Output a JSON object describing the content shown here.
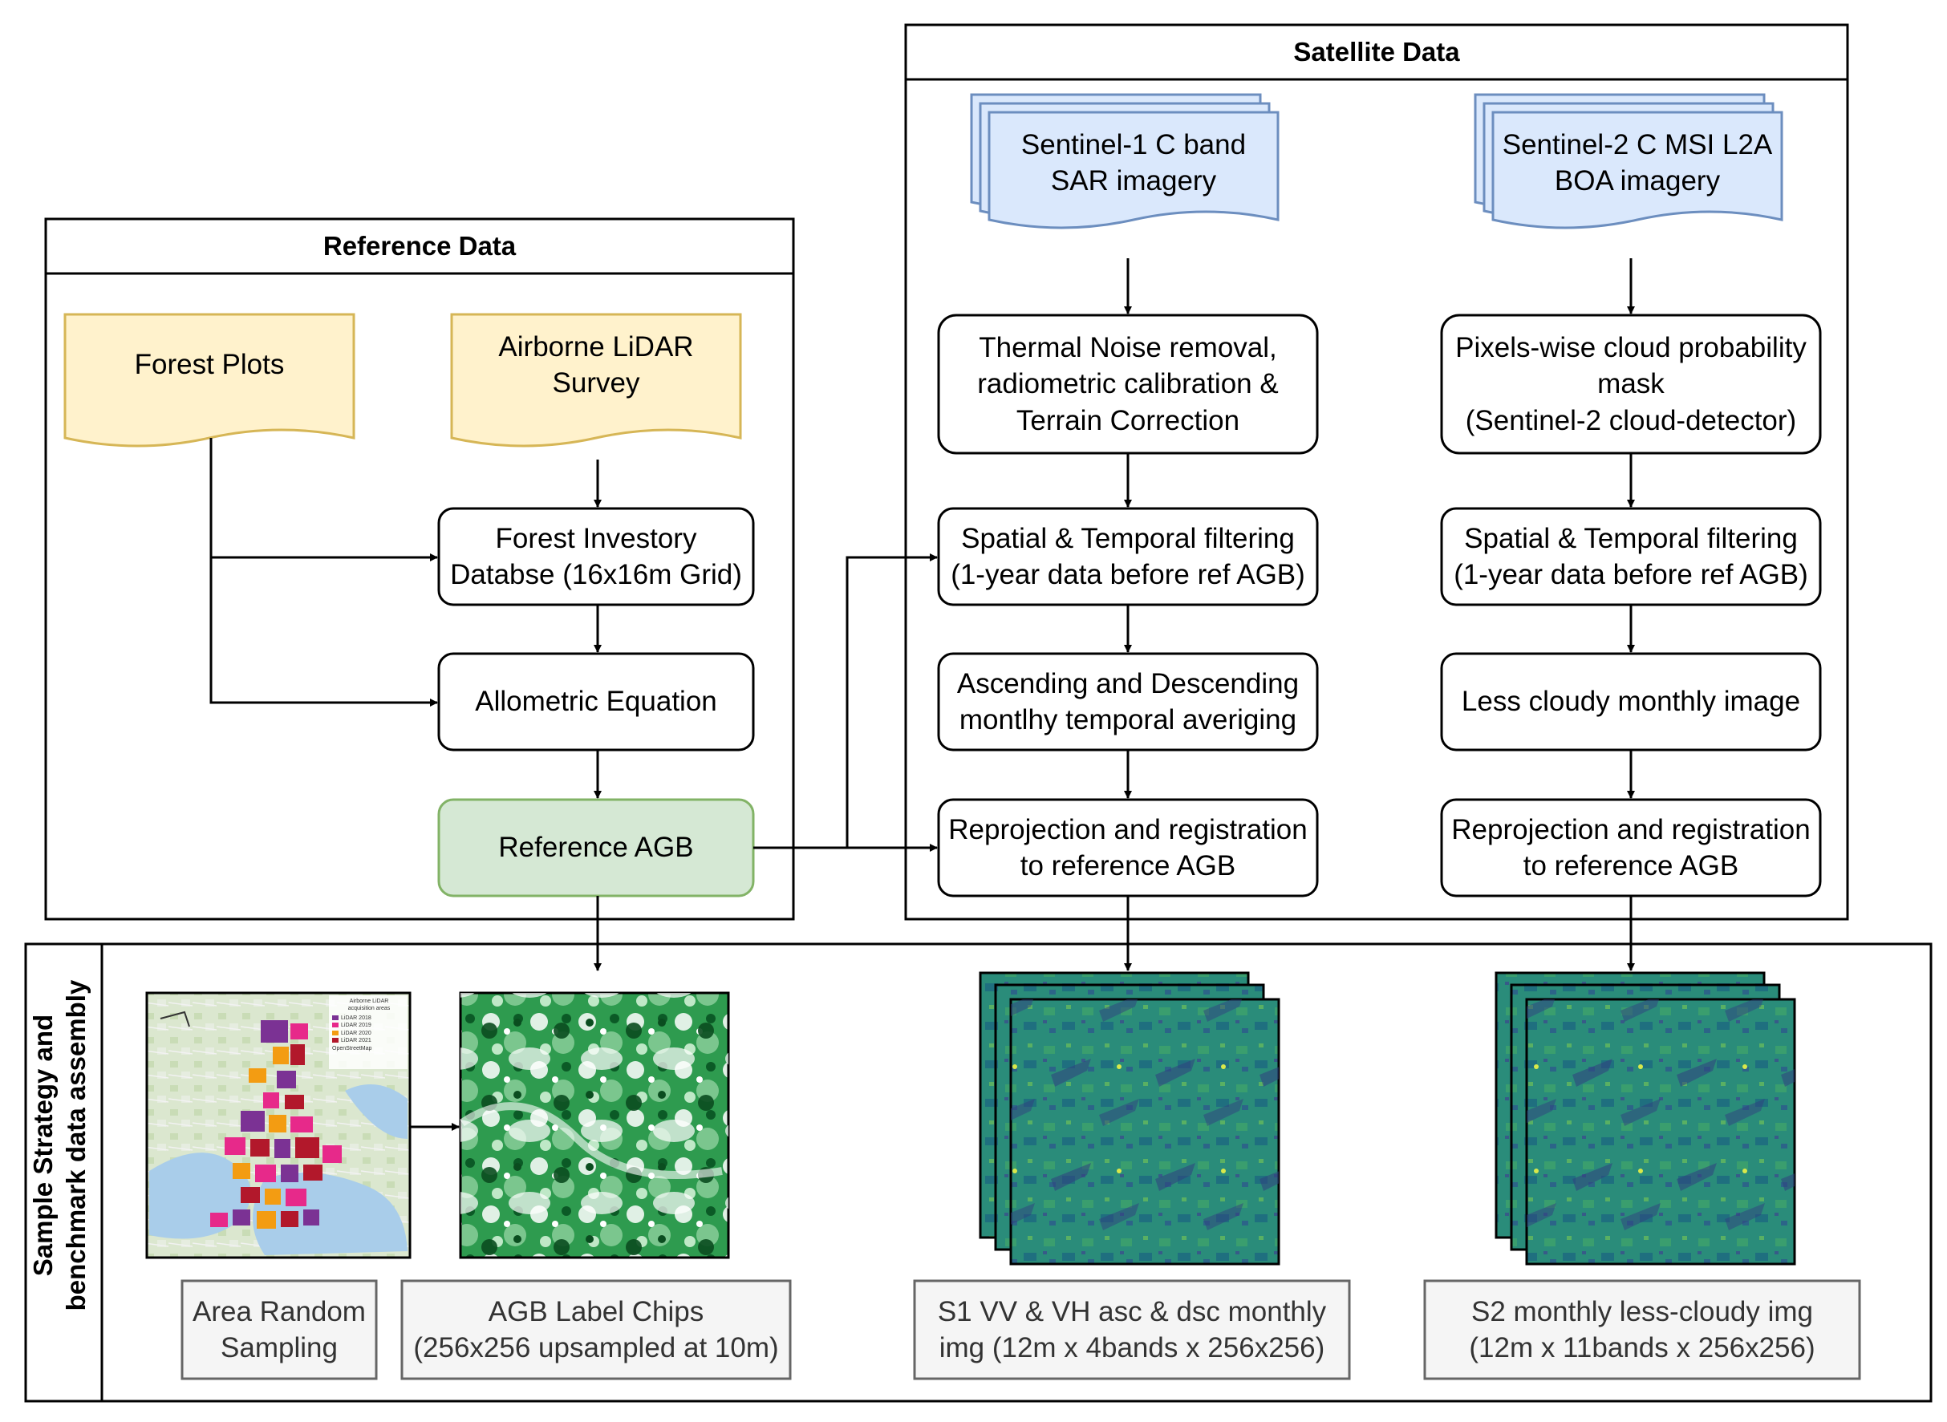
{
  "colors": {
    "yellow_fill": "#fff2cc",
    "yellow_stroke": "#d6b656",
    "blue_fill": "#dae8fc",
    "blue_stroke": "#6c8ebf",
    "green_fill": "#d5e8d4",
    "green_stroke": "#82b366",
    "caption_fill": "#f5f5f5",
    "caption_stroke": "#666666"
  },
  "groups": {
    "reference": {
      "title": "Reference Data"
    },
    "satellite": {
      "title": "Satellite Data"
    },
    "sample": {
      "title": "Sample Strategy and\nbenchmark data assembly"
    }
  },
  "inputs": {
    "forest_plots": "Forest Plots",
    "lidar": "Airborne LiDAR\nSurvey",
    "s1": "Sentinel-1 C band\nSAR imagery",
    "s2": "Sentinel-2 C MSI L2A\nBOA imagery"
  },
  "steps": {
    "inventory": "Forest Investory\nDatabse (16x16m Grid)",
    "allometric": "Allometric Equation",
    "ref_agb": "Reference AGB",
    "s1_noise": "Thermal Noise removal,\nradiometric calibration &\nTerrain Correction",
    "s1_filter": "Spatial & Temporal filtering\n(1-year data before ref AGB)",
    "s1_avg": "Ascending and Descending\nmontlhy temporal averiging",
    "s1_reproj": "Reprojection and registration\nto reference AGB",
    "s2_cloud": "Pixels-wise cloud probability\nmask\n(Sentinel-2 cloud-detector)",
    "s2_filter": "Spatial & Temporal filtering\n(1-year data before ref AGB)",
    "s2_monthly": "Less cloudy monthly image",
    "s2_reproj": "Reprojection and registration\nto reference AGB"
  },
  "captions": {
    "area": "Area Random\nSampling",
    "chips": "AGB Label Chips\n(256x256 upsampled at 10m)",
    "s1_img": "S1 VV & VH asc & dsc monthly\nimg (12m x 4bands x 256x256)",
    "s2_img": "S2 monthly less-cloudy img\n(12m x 11bands x 256x256)"
  },
  "map_legend": {
    "title": "Airborne LiDAR\nacquisition areas",
    "items": [
      {
        "label": "LiDAR 2018",
        "color": "#7b3294"
      },
      {
        "label": "LiDAR 2019",
        "color": "#e7298a"
      },
      {
        "label": "LiDAR 2020",
        "color": "#f39c12"
      },
      {
        "label": "LiDAR 2021",
        "color": "#b2182b"
      }
    ],
    "credit": "OpenStreetMap"
  }
}
